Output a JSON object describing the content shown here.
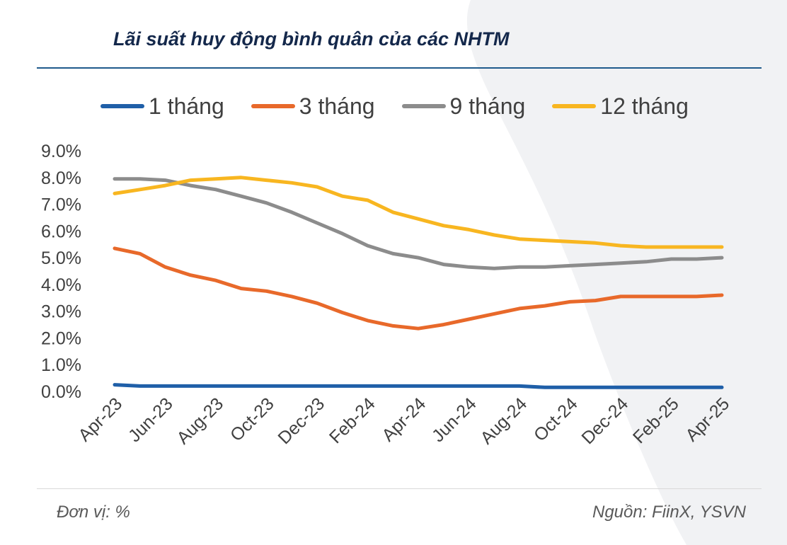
{
  "header": {
    "title": "Lãi suất huy động bình quân của các NHTM"
  },
  "footer": {
    "unit": "Đơn vị: %",
    "source": "Nguồn: FiinX, YSVN"
  },
  "chart_data": {
    "type": "line",
    "title": "Lãi suất huy động bình quân của các NHTM",
    "xlabel": "",
    "ylabel": "",
    "x": [
      "Apr-23",
      "May-23",
      "Jun-23",
      "Jul-23",
      "Aug-23",
      "Sep-23",
      "Oct-23",
      "Nov-23",
      "Dec-23",
      "Jan-24",
      "Feb-24",
      "Mar-24",
      "Apr-24",
      "May-24",
      "Jun-24",
      "Jul-24",
      "Aug-24",
      "Sep-24",
      "Oct-24",
      "Nov-24",
      "Dec-24",
      "Jan-25",
      "Feb-25",
      "Mar-25",
      "Apr-25"
    ],
    "x_tick_labels": [
      "Apr-23",
      "Jun-23",
      "Aug-23",
      "Oct-23",
      "Dec-23",
      "Feb-24",
      "Apr-24",
      "Jun-24",
      "Aug-24",
      "Oct-24",
      "Dec-24",
      "Feb-25",
      "Apr-25"
    ],
    "y_ticks": [
      "0.0%",
      "1.0%",
      "2.0%",
      "3.0%",
      "4.0%",
      "5.0%",
      "6.0%",
      "7.0%",
      "8.0%",
      "9.0%"
    ],
    "ylim": [
      0,
      9
    ],
    "grid": false,
    "legend_position": "top",
    "series": [
      {
        "name": "1 tháng",
        "color": "#1f5fa8",
        "values": [
          0.25,
          0.2,
          0.2,
          0.2,
          0.2,
          0.2,
          0.2,
          0.2,
          0.2,
          0.2,
          0.2,
          0.2,
          0.2,
          0.2,
          0.2,
          0.2,
          0.2,
          0.15,
          0.15,
          0.15,
          0.15,
          0.15,
          0.15,
          0.15,
          0.15
        ]
      },
      {
        "name": "3 tháng",
        "color": "#e8692a",
        "values": [
          5.35,
          5.15,
          4.65,
          4.35,
          4.15,
          3.85,
          3.75,
          3.55,
          3.3,
          2.95,
          2.65,
          2.45,
          2.35,
          2.5,
          2.7,
          2.9,
          3.1,
          3.2,
          3.35,
          3.4,
          3.55,
          3.55,
          3.55,
          3.55,
          3.6
        ]
      },
      {
        "name": "9 tháng",
        "color": "#8c8c8c",
        "values": [
          7.95,
          7.95,
          7.9,
          7.7,
          7.55,
          7.3,
          7.05,
          6.7,
          6.3,
          5.9,
          5.45,
          5.15,
          5.0,
          4.75,
          4.65,
          4.6,
          4.65,
          4.65,
          4.7,
          4.75,
          4.8,
          4.85,
          4.95,
          4.95,
          5.0
        ]
      },
      {
        "name": "12 tháng",
        "color": "#f8b620",
        "values": [
          7.4,
          7.55,
          7.7,
          7.9,
          7.95,
          8.0,
          7.9,
          7.8,
          7.65,
          7.3,
          7.15,
          6.7,
          6.45,
          6.2,
          6.05,
          5.85,
          5.7,
          5.65,
          5.6,
          5.55,
          5.45,
          5.4,
          5.4,
          5.4,
          5.4
        ]
      }
    ]
  }
}
